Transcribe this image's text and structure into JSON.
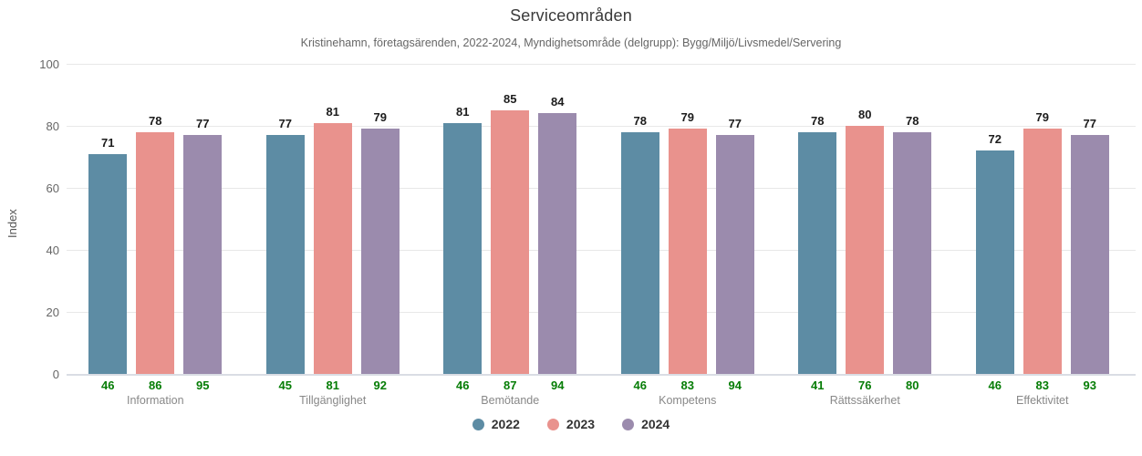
{
  "chart_data": {
    "type": "bar",
    "title": "Serviceområden",
    "subtitle": "Kristinehamn, företagsärenden, 2022-2024, Myndighetsområde (delgrupp): Bygg/Miljö/Livsmedel/Servering",
    "ylabel": "Index",
    "ylim": [
      0,
      100
    ],
    "yticks": [
      0,
      20,
      40,
      60,
      80,
      100
    ],
    "grid": true,
    "legend_position": "bottom",
    "categories": [
      "Information",
      "Tillgänglighet",
      "Bemötande",
      "Kompetens",
      "Rättssäkerhet",
      "Effektivitet"
    ],
    "series": [
      {
        "name": "2022",
        "color": "#5d8ca4",
        "values": [
          71,
          77,
          81,
          78,
          78,
          72
        ],
        "sample_counts": [
          46,
          45,
          46,
          46,
          41,
          46
        ]
      },
      {
        "name": "2023",
        "color": "#e9928d",
        "values": [
          78,
          81,
          85,
          79,
          80,
          79
        ],
        "sample_counts": [
          86,
          81,
          87,
          83,
          76,
          83
        ]
      },
      {
        "name": "2024",
        "color": "#9b8bad",
        "values": [
          77,
          79,
          84,
          77,
          78,
          77
        ],
        "sample_counts": [
          95,
          92,
          94,
          94,
          80,
          93
        ]
      }
    ],
    "annotations": {
      "sample_count_color": "#067d06",
      "value_label_color": "#1c1c1c"
    }
  }
}
